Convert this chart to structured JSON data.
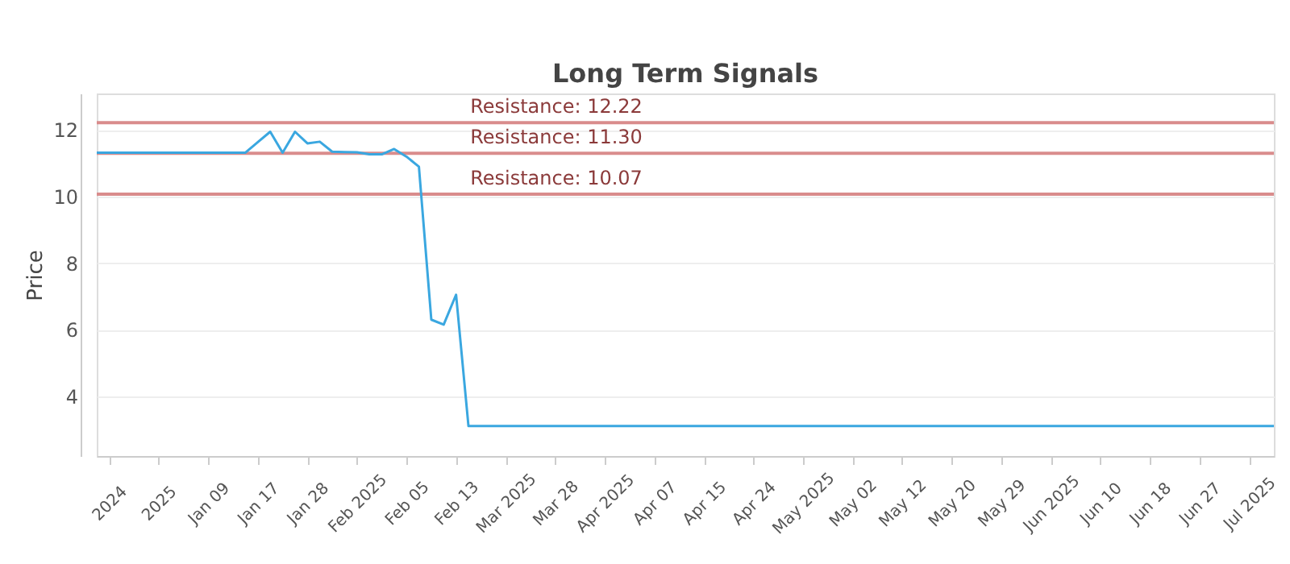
{
  "chart_data": {
    "type": "line",
    "title": "Long Term Signals",
    "ylabel": "Price",
    "categories": [
      null,
      "2024",
      null,
      null,
      null,
      "2025",
      null,
      null,
      null,
      "Jan 09",
      null,
      null,
      null,
      "Jan 17",
      null,
      null,
      null,
      "Jan 28",
      null,
      null,
      null,
      "Feb 2025",
      null,
      null,
      null,
      "Feb 05",
      null,
      null,
      null,
      "Feb 13",
      null,
      null,
      null,
      "Mar 2025",
      null,
      null,
      null,
      "Mar 28",
      null,
      null,
      null,
      "Apr 2025",
      null,
      null,
      null,
      "Apr 07",
      null,
      null,
      null,
      "Apr 15",
      null,
      null,
      null,
      "Apr 24",
      null,
      null,
      null,
      "May 2025",
      null,
      null,
      null,
      "May 02",
      null,
      null,
      null,
      "May 12",
      null,
      null,
      null,
      "May 20",
      null,
      null,
      null,
      "May 29",
      null,
      null,
      null,
      "Jun 2025",
      null,
      null,
      null,
      "Jun 10",
      null,
      null,
      null,
      "Jun 18",
      null,
      null,
      null,
      "Jun 27",
      null,
      null,
      null,
      "Jul 2025",
      null,
      null
    ],
    "series": [
      {
        "color": "#3aa7e0",
        "values": [
          11.32,
          11.32,
          11.32,
          11.32,
          11.32,
          11.32,
          11.32,
          11.32,
          11.32,
          11.32,
          11.32,
          11.32,
          11.32,
          11.64,
          11.95,
          11.32,
          11.95,
          11.6,
          11.65,
          11.35,
          11.34,
          11.33,
          11.27,
          11.27,
          11.43,
          11.2,
          10.9,
          6.3,
          6.15,
          7.05,
          3.1,
          3.1,
          3.1,
          3.1,
          3.1,
          3.1,
          3.1,
          3.1,
          3.1,
          3.1,
          3.1,
          3.1,
          3.1,
          3.1,
          3.1,
          3.1,
          3.1,
          3.1,
          3.1,
          3.1,
          3.1,
          3.1,
          3.1,
          3.1,
          3.1,
          3.1,
          3.1,
          3.1,
          3.1,
          3.1,
          3.1,
          3.1,
          3.1,
          3.1,
          3.1,
          3.1,
          3.1,
          3.1,
          3.1,
          3.1,
          3.1,
          3.1,
          3.1,
          3.1,
          3.1,
          3.1,
          3.1,
          3.1,
          3.1,
          3.1,
          3.1,
          3.1,
          3.1,
          3.1,
          3.1,
          3.1,
          3.1,
          3.1,
          3.1,
          3.1,
          3.1,
          3.1,
          3.1,
          3.1,
          3.1,
          3.1
        ]
      }
    ],
    "ylim": [
      2.2,
      13.1
    ],
    "yticks": [
      4,
      6,
      8,
      10,
      12
    ],
    "grid": "y",
    "ref_lines": [
      {
        "axis": "y",
        "value": 12.22,
        "label": "Resistance: 12.22",
        "color": "#d98c8c"
      },
      {
        "axis": "y",
        "value": 11.3,
        "label": "Resistance: 11.30",
        "color": "#d98c8c"
      },
      {
        "axis": "y",
        "value": 10.07,
        "label": "Resistance: 10.07",
        "color": "#d98c8c"
      }
    ]
  }
}
